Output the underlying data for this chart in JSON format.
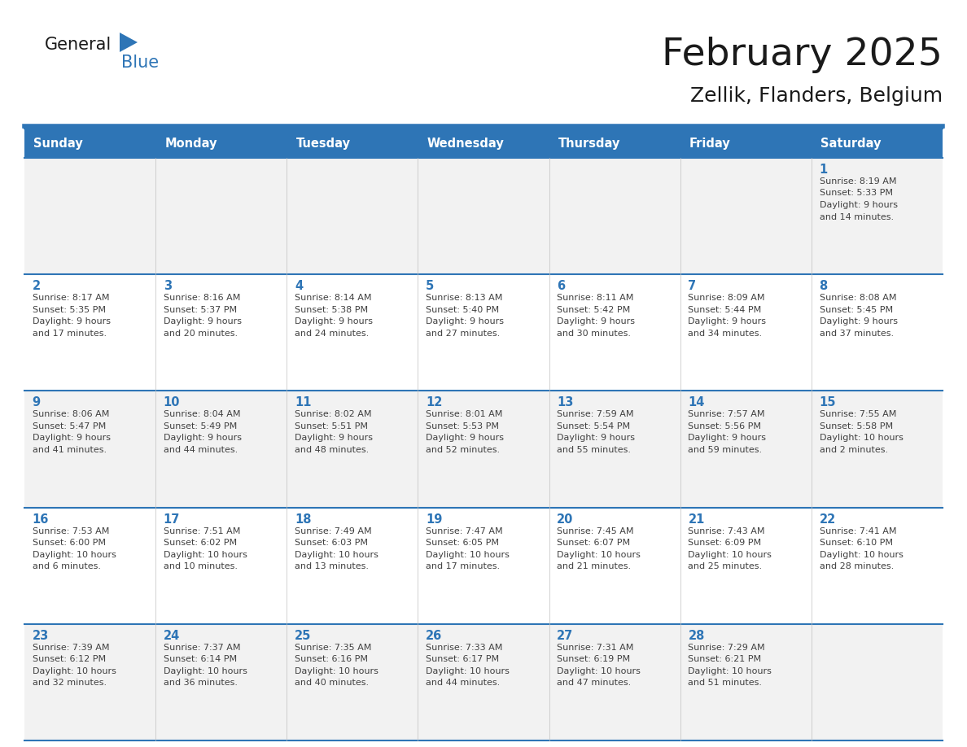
{
  "title": "February 2025",
  "subtitle": "Zellik, Flanders, Belgium",
  "header_bg_color": "#2e75b6",
  "header_text_color": "#ffffff",
  "cell_bg_white": "#ffffff",
  "cell_bg_gray": "#f2f2f2",
  "day_number_color": "#2e75b6",
  "info_text_color": "#404040",
  "border_color": "#2e75b6",
  "weekdays": [
    "Sunday",
    "Monday",
    "Tuesday",
    "Wednesday",
    "Thursday",
    "Friday",
    "Saturday"
  ],
  "days_data": [
    {
      "day": 1,
      "col": 6,
      "row": 0,
      "sunrise": "8:19 AM",
      "sunset": "5:33 PM",
      "daylight": "9 hours and 14 minutes."
    },
    {
      "day": 2,
      "col": 0,
      "row": 1,
      "sunrise": "8:17 AM",
      "sunset": "5:35 PM",
      "daylight": "9 hours and 17 minutes."
    },
    {
      "day": 3,
      "col": 1,
      "row": 1,
      "sunrise": "8:16 AM",
      "sunset": "5:37 PM",
      "daylight": "9 hours and 20 minutes."
    },
    {
      "day": 4,
      "col": 2,
      "row": 1,
      "sunrise": "8:14 AM",
      "sunset": "5:38 PM",
      "daylight": "9 hours and 24 minutes."
    },
    {
      "day": 5,
      "col": 3,
      "row": 1,
      "sunrise": "8:13 AM",
      "sunset": "5:40 PM",
      "daylight": "9 hours and 27 minutes."
    },
    {
      "day": 6,
      "col": 4,
      "row": 1,
      "sunrise": "8:11 AM",
      "sunset": "5:42 PM",
      "daylight": "9 hours and 30 minutes."
    },
    {
      "day": 7,
      "col": 5,
      "row": 1,
      "sunrise": "8:09 AM",
      "sunset": "5:44 PM",
      "daylight": "9 hours and 34 minutes."
    },
    {
      "day": 8,
      "col": 6,
      "row": 1,
      "sunrise": "8:08 AM",
      "sunset": "5:45 PM",
      "daylight": "9 hours and 37 minutes."
    },
    {
      "day": 9,
      "col": 0,
      "row": 2,
      "sunrise": "8:06 AM",
      "sunset": "5:47 PM",
      "daylight": "9 hours and 41 minutes."
    },
    {
      "day": 10,
      "col": 1,
      "row": 2,
      "sunrise": "8:04 AM",
      "sunset": "5:49 PM",
      "daylight": "9 hours and 44 minutes."
    },
    {
      "day": 11,
      "col": 2,
      "row": 2,
      "sunrise": "8:02 AM",
      "sunset": "5:51 PM",
      "daylight": "9 hours and 48 minutes."
    },
    {
      "day": 12,
      "col": 3,
      "row": 2,
      "sunrise": "8:01 AM",
      "sunset": "5:53 PM",
      "daylight": "9 hours and 52 minutes."
    },
    {
      "day": 13,
      "col": 4,
      "row": 2,
      "sunrise": "7:59 AM",
      "sunset": "5:54 PM",
      "daylight": "9 hours and 55 minutes."
    },
    {
      "day": 14,
      "col": 5,
      "row": 2,
      "sunrise": "7:57 AM",
      "sunset": "5:56 PM",
      "daylight": "9 hours and 59 minutes."
    },
    {
      "day": 15,
      "col": 6,
      "row": 2,
      "sunrise": "7:55 AM",
      "sunset": "5:58 PM",
      "daylight": "10 hours and 2 minutes."
    },
    {
      "day": 16,
      "col": 0,
      "row": 3,
      "sunrise": "7:53 AM",
      "sunset": "6:00 PM",
      "daylight": "10 hours and 6 minutes."
    },
    {
      "day": 17,
      "col": 1,
      "row": 3,
      "sunrise": "7:51 AM",
      "sunset": "6:02 PM",
      "daylight": "10 hours and 10 minutes."
    },
    {
      "day": 18,
      "col": 2,
      "row": 3,
      "sunrise": "7:49 AM",
      "sunset": "6:03 PM",
      "daylight": "10 hours and 13 minutes."
    },
    {
      "day": 19,
      "col": 3,
      "row": 3,
      "sunrise": "7:47 AM",
      "sunset": "6:05 PM",
      "daylight": "10 hours and 17 minutes."
    },
    {
      "day": 20,
      "col": 4,
      "row": 3,
      "sunrise": "7:45 AM",
      "sunset": "6:07 PM",
      "daylight": "10 hours and 21 minutes."
    },
    {
      "day": 21,
      "col": 5,
      "row": 3,
      "sunrise": "7:43 AM",
      "sunset": "6:09 PM",
      "daylight": "10 hours and 25 minutes."
    },
    {
      "day": 22,
      "col": 6,
      "row": 3,
      "sunrise": "7:41 AM",
      "sunset": "6:10 PM",
      "daylight": "10 hours and 28 minutes."
    },
    {
      "day": 23,
      "col": 0,
      "row": 4,
      "sunrise": "7:39 AM",
      "sunset": "6:12 PM",
      "daylight": "10 hours and 32 minutes."
    },
    {
      "day": 24,
      "col": 1,
      "row": 4,
      "sunrise": "7:37 AM",
      "sunset": "6:14 PM",
      "daylight": "10 hours and 36 minutes."
    },
    {
      "day": 25,
      "col": 2,
      "row": 4,
      "sunrise": "7:35 AM",
      "sunset": "6:16 PM",
      "daylight": "10 hours and 40 minutes."
    },
    {
      "day": 26,
      "col": 3,
      "row": 4,
      "sunrise": "7:33 AM",
      "sunset": "6:17 PM",
      "daylight": "10 hours and 44 minutes."
    },
    {
      "day": 27,
      "col": 4,
      "row": 4,
      "sunrise": "7:31 AM",
      "sunset": "6:19 PM",
      "daylight": "10 hours and 47 minutes."
    },
    {
      "day": 28,
      "col": 5,
      "row": 4,
      "sunrise": "7:29 AM",
      "sunset": "6:21 PM",
      "daylight": "10 hours and 51 minutes."
    }
  ],
  "num_rows": 5,
  "num_cols": 7,
  "logo_general_color": "#1a1a1a",
  "logo_blue_color": "#2e75b6",
  "logo_triangle_color": "#2e75b6",
  "title_color": "#1a1a1a",
  "subtitle_color": "#1a1a1a"
}
